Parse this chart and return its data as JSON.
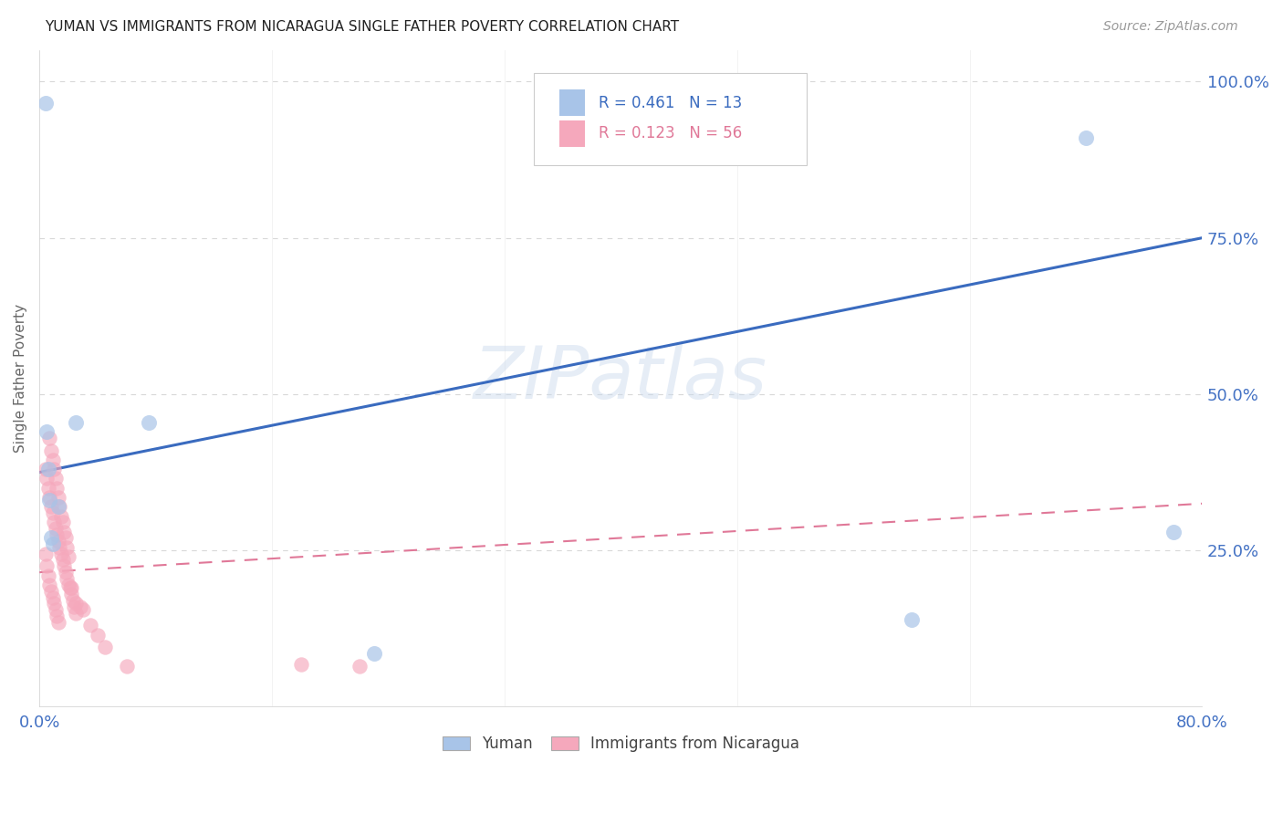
{
  "title": "YUMAN VS IMMIGRANTS FROM NICARAGUA SINGLE FATHER POVERTY CORRELATION CHART",
  "source": "Source: ZipAtlas.com",
  "ylabel": "Single Father Poverty",
  "watermark": "ZIPatlas",
  "blue_color": "#a8c4e8",
  "pink_color": "#f5a8bc",
  "blue_line_color": "#3a6bbf",
  "pink_line_color": "#e07898",
  "axis_label_color": "#4472c4",
  "grid_color": "#d8d8d8",
  "xlim": [
    0.0,
    0.8
  ],
  "ylim": [
    0.0,
    1.05
  ],
  "blue_trendline": [
    0.0,
    0.375,
    0.8,
    0.75
  ],
  "pink_trendline": [
    0.0,
    0.215,
    0.8,
    0.325
  ],
  "yuman_x": [
    0.004,
    0.005,
    0.006,
    0.007,
    0.008,
    0.009,
    0.025,
    0.075,
    0.23,
    0.6,
    0.72,
    0.013,
    0.78
  ],
  "yuman_y": [
    0.965,
    0.44,
    0.38,
    0.33,
    0.27,
    0.26,
    0.455,
    0.455,
    0.085,
    0.14,
    0.91,
    0.32,
    0.28
  ],
  "nicaragua_x": [
    0.004,
    0.005,
    0.006,
    0.007,
    0.008,
    0.009,
    0.01,
    0.011,
    0.012,
    0.013,
    0.004,
    0.005,
    0.006,
    0.007,
    0.008,
    0.009,
    0.01,
    0.011,
    0.012,
    0.013,
    0.014,
    0.015,
    0.016,
    0.017,
    0.018,
    0.019,
    0.02,
    0.021,
    0.022,
    0.023,
    0.024,
    0.025,
    0.007,
    0.008,
    0.009,
    0.01,
    0.011,
    0.012,
    0.013,
    0.014,
    0.015,
    0.016,
    0.017,
    0.018,
    0.019,
    0.02,
    0.022,
    0.025,
    0.028,
    0.03,
    0.035,
    0.04,
    0.045,
    0.06,
    0.18,
    0.22
  ],
  "nicaragua_y": [
    0.245,
    0.225,
    0.21,
    0.195,
    0.185,
    0.175,
    0.165,
    0.155,
    0.145,
    0.135,
    0.38,
    0.365,
    0.35,
    0.335,
    0.32,
    0.31,
    0.295,
    0.285,
    0.275,
    0.265,
    0.255,
    0.245,
    0.235,
    0.225,
    0.215,
    0.205,
    0.195,
    0.19,
    0.18,
    0.17,
    0.16,
    0.15,
    0.43,
    0.41,
    0.395,
    0.38,
    0.365,
    0.35,
    0.335,
    0.32,
    0.305,
    0.295,
    0.28,
    0.27,
    0.255,
    0.24,
    0.19,
    0.165,
    0.16,
    0.155,
    0.13,
    0.115,
    0.095,
    0.065,
    0.068,
    0.065
  ]
}
